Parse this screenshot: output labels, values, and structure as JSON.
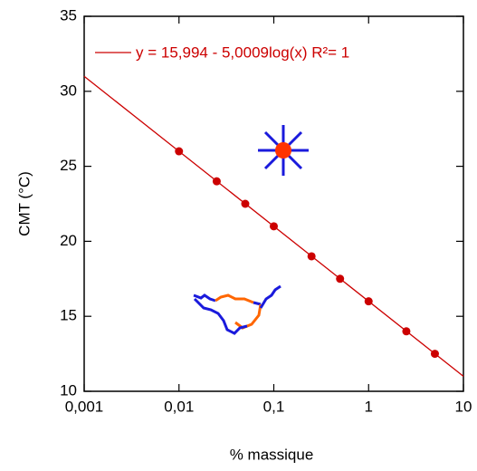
{
  "chart_data": {
    "type": "scatter",
    "x_label": "% massique",
    "y_label": "CMT (°C)",
    "x_log": true,
    "xlim": [
      0.001,
      10
    ],
    "xticks": [
      {
        "value": 0.001,
        "label": "0,001"
      },
      {
        "value": 0.01,
        "label": "0,01"
      },
      {
        "value": 0.1,
        "label": "0,1"
      },
      1,
      10
    ],
    "ylim": [
      10,
      35
    ],
    "yticks": [
      10,
      15,
      20,
      25,
      30,
      35
    ],
    "series": [
      {
        "color": "#cc0000",
        "x": [
          0.01,
          0.025,
          0.05,
          0.1,
          0.25,
          0.5,
          1,
          2.5,
          5
        ],
        "values": [
          26,
          24,
          22.5,
          21,
          19,
          17.5,
          16,
          14,
          12.5
        ]
      }
    ],
    "fit": {
      "name": "y = 15,994 - 5,0009log(x)   R²= 1",
      "color": "#cc0000",
      "x": [
        0.001,
        10
      ],
      "values": [
        31,
        11
      ]
    },
    "legend": "top-right"
  }
}
